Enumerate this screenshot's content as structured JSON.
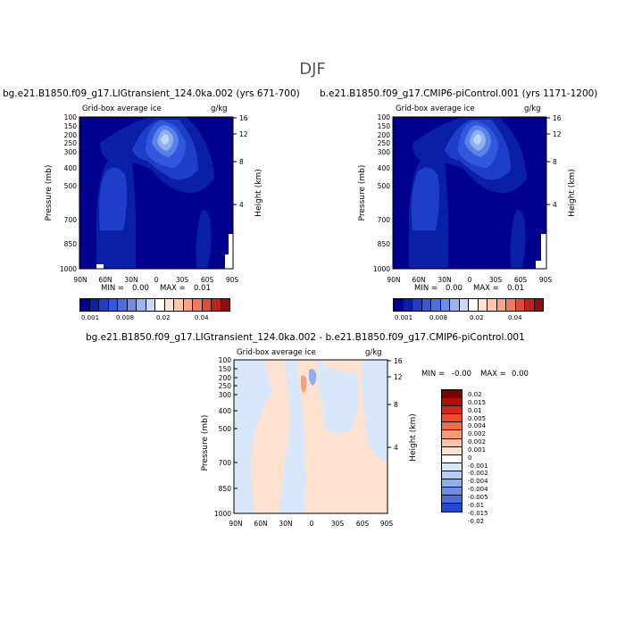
{
  "figure": {
    "title": "DJF"
  },
  "colors": {
    "navy": "#00008f",
    "blue1": "#0a1fa8",
    "blue2": "#1e3ec9",
    "blue3": "#3158dc",
    "blue4": "#5a82e8",
    "blue5": "#8fb0f0",
    "blue6": "#bcd4f6",
    "pale_blue": "#d8e8fa",
    "pale_orange": "#fde3cf"
  },
  "chart_data": [
    {
      "type": "heatmap",
      "title": "bg.e21.B1850.f09_g17.LIGtransient_124.0ka.002 (yrs 671-700)",
      "subtitle": "Grid-box average ice",
      "units": "g/kg",
      "xlabel": "",
      "ylabel": "Pressure (mb)",
      "y2label": "Height (km)",
      "x_ticks": [
        "90N",
        "60N",
        "30N",
        "0",
        "30S",
        "60S",
        "90S"
      ],
      "y_ticks": [
        "100",
        "150",
        "200",
        "250",
        "300",
        "400",
        "500",
        "700",
        "850",
        "1000"
      ],
      "y2_ticks": [
        "16",
        "12",
        "8",
        "4"
      ],
      "min_label": "MIN =",
      "min_value": "0.00",
      "max_label": "MAX =",
      "max_value": "0.01",
      "colorbar_labels": [
        "0.001",
        "0.008",
        "0.02",
        "0.04"
      ]
    },
    {
      "type": "heatmap",
      "title": "b.e21.B1850.f09_g17.CMIP6-piControl.001 (yrs 1171-1200)",
      "subtitle": "Grid-box average ice",
      "units": "g/kg",
      "xlabel": "",
      "ylabel": "Pressure (mb)",
      "y2label": "Height (km)",
      "x_ticks": [
        "90N",
        "60N",
        "30N",
        "0",
        "30S",
        "60S",
        "90S"
      ],
      "y_ticks": [
        "100",
        "150",
        "200",
        "250",
        "300",
        "400",
        "500",
        "700",
        "850",
        "1000"
      ],
      "y2_ticks": [
        "16",
        "12",
        "8",
        "4"
      ],
      "min_label": "MIN =",
      "min_value": "0.00",
      "max_label": "MAX =",
      "max_value": "0.01",
      "colorbar_labels": [
        "0.001",
        "0.008",
        "0.02",
        "0.04"
      ]
    },
    {
      "type": "heatmap",
      "title": "bg.e21.B1850.f09_g17.LIGtransient_124.0ka.002 - b.e21.B1850.f09_g17.CMIP6-piControl.001",
      "subtitle": "Grid-box average ice",
      "units": "g/kg",
      "xlabel": "",
      "ylabel": "Pressure (mb)",
      "y2label": "Height (km)",
      "x_ticks": [
        "90N",
        "60N",
        "30N",
        "0",
        "30S",
        "60S",
        "90S"
      ],
      "y_ticks": [
        "100",
        "150",
        "200",
        "250",
        "300",
        "400",
        "500",
        "700",
        "850",
        "1000"
      ],
      "y2_ticks": [
        "16",
        "12",
        "8",
        "4"
      ],
      "min_label": "MIN =",
      "min_value": "-0.00",
      "max_label": "MAX =",
      "max_value": "0.00",
      "colorbar_labels": [
        "0.02",
        "0.015",
        "0.01",
        "0.005",
        "0.004",
        "0.002",
        "0.002",
        "0.001",
        "0",
        "-0.001",
        "-0.002",
        "-0.004",
        "-0.004",
        "-0.005",
        "-0.01",
        "-0.015",
        "-0.02"
      ]
    }
  ]
}
